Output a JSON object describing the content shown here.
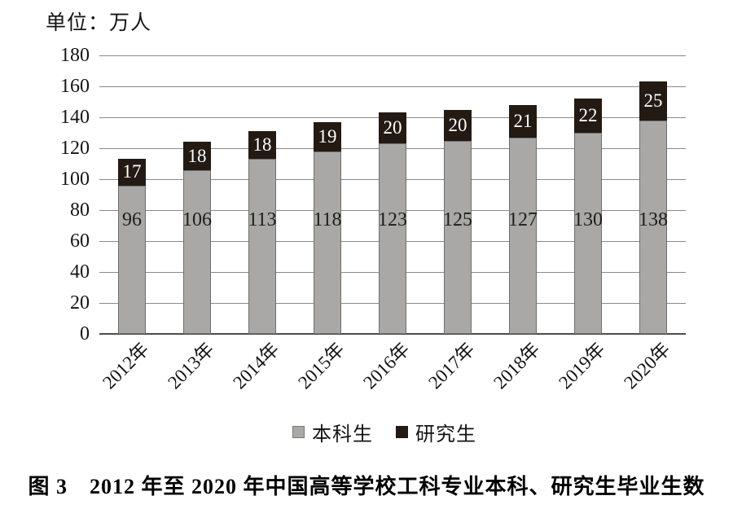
{
  "figure": {
    "unit_label": "单位：万人",
    "caption": "图 3　2012 年至 2020 年中国高等学校工科专业本科、研究生毕业生数"
  },
  "chart_data": {
    "type": "bar",
    "stacked": true,
    "unit_label": "单位：万人",
    "caption": "图 3　2012 年至 2020 年中国高等学校工科专业本科、研究生毕业生数",
    "categories": [
      "2012年",
      "2013年",
      "2014年",
      "2015年",
      "2016年",
      "2017年",
      "2018年",
      "2019年",
      "2020年"
    ],
    "series": [
      {
        "name": "本科生",
        "color": "#a9a8a6",
        "border_color": "#6e6e6e",
        "label_color": "#1d1d1b",
        "values": [
          96,
          106,
          113,
          118,
          123,
          125,
          127,
          130,
          138
        ]
      },
      {
        "name": "研究生",
        "color": "#231a14",
        "border_color": "#231a14",
        "label_color": "#ffffff",
        "values": [
          17,
          18,
          18,
          19,
          20,
          20,
          21,
          22,
          25
        ]
      }
    ],
    "ylim": [
      0,
      180
    ],
    "yticks": [
      0,
      20,
      40,
      60,
      80,
      100,
      120,
      140,
      160,
      180
    ],
    "grid": true,
    "gridline_color": "#8a8a8a",
    "axis_color": "#4d4d4d",
    "legend_position": "bottom",
    "xlabel": "",
    "ylabel": ""
  }
}
